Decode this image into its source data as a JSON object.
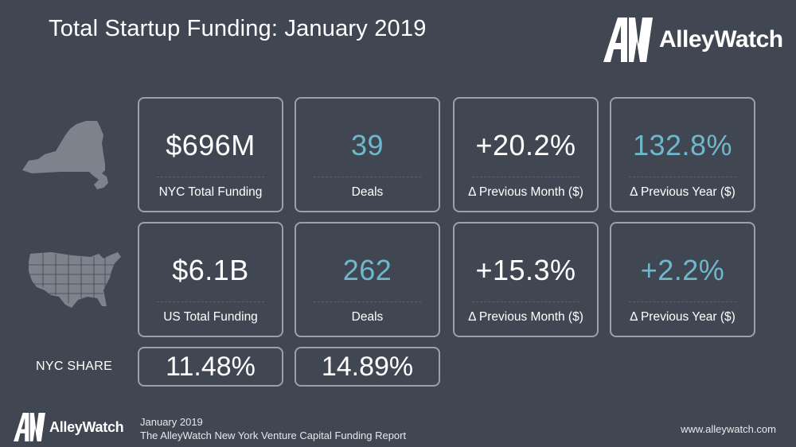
{
  "title": "Total Startup Funding: January 2019",
  "brand": {
    "name": "AlleyWatch",
    "mark": "AW",
    "mark_icon": "alleywatch-logo-icon"
  },
  "colors": {
    "background": "#414752",
    "accent": "#6fb8cc",
    "card_border": "#9aa1aa",
    "map": "#7c838c"
  },
  "icons": {
    "ny_map": "new-york-state-map-icon",
    "us_map": "usa-map-icon"
  },
  "nyc_row": [
    {
      "value": "$696M",
      "label": "NYC Total Funding",
      "accent": false
    },
    {
      "value": "39",
      "label": "Deals",
      "accent": true
    },
    {
      "value": "+20.2%",
      "label": "Δ Previous Month ($)",
      "accent": false
    },
    {
      "value": "132.8%",
      "label": "Δ Previous Year ($)",
      "accent": true
    }
  ],
  "us_row": [
    {
      "value": "$6.1B",
      "label": "US Total Funding",
      "accent": false
    },
    {
      "value": "262",
      "label": "Deals",
      "accent": true
    },
    {
      "value": "+15.3%",
      "label": "Δ Previous Month ($)",
      "accent": false
    },
    {
      "value": "+2.2%",
      "label": "Δ Previous Year ($)",
      "accent": true
    }
  ],
  "nyc_share": {
    "label": "NYC SHARE",
    "values": [
      "11.48%",
      "14.89%"
    ]
  },
  "footer": {
    "date": "January 2019",
    "report": "The AlleyWatch New York Venture Capital Funding Report",
    "url": "www.alleywatch.com"
  }
}
